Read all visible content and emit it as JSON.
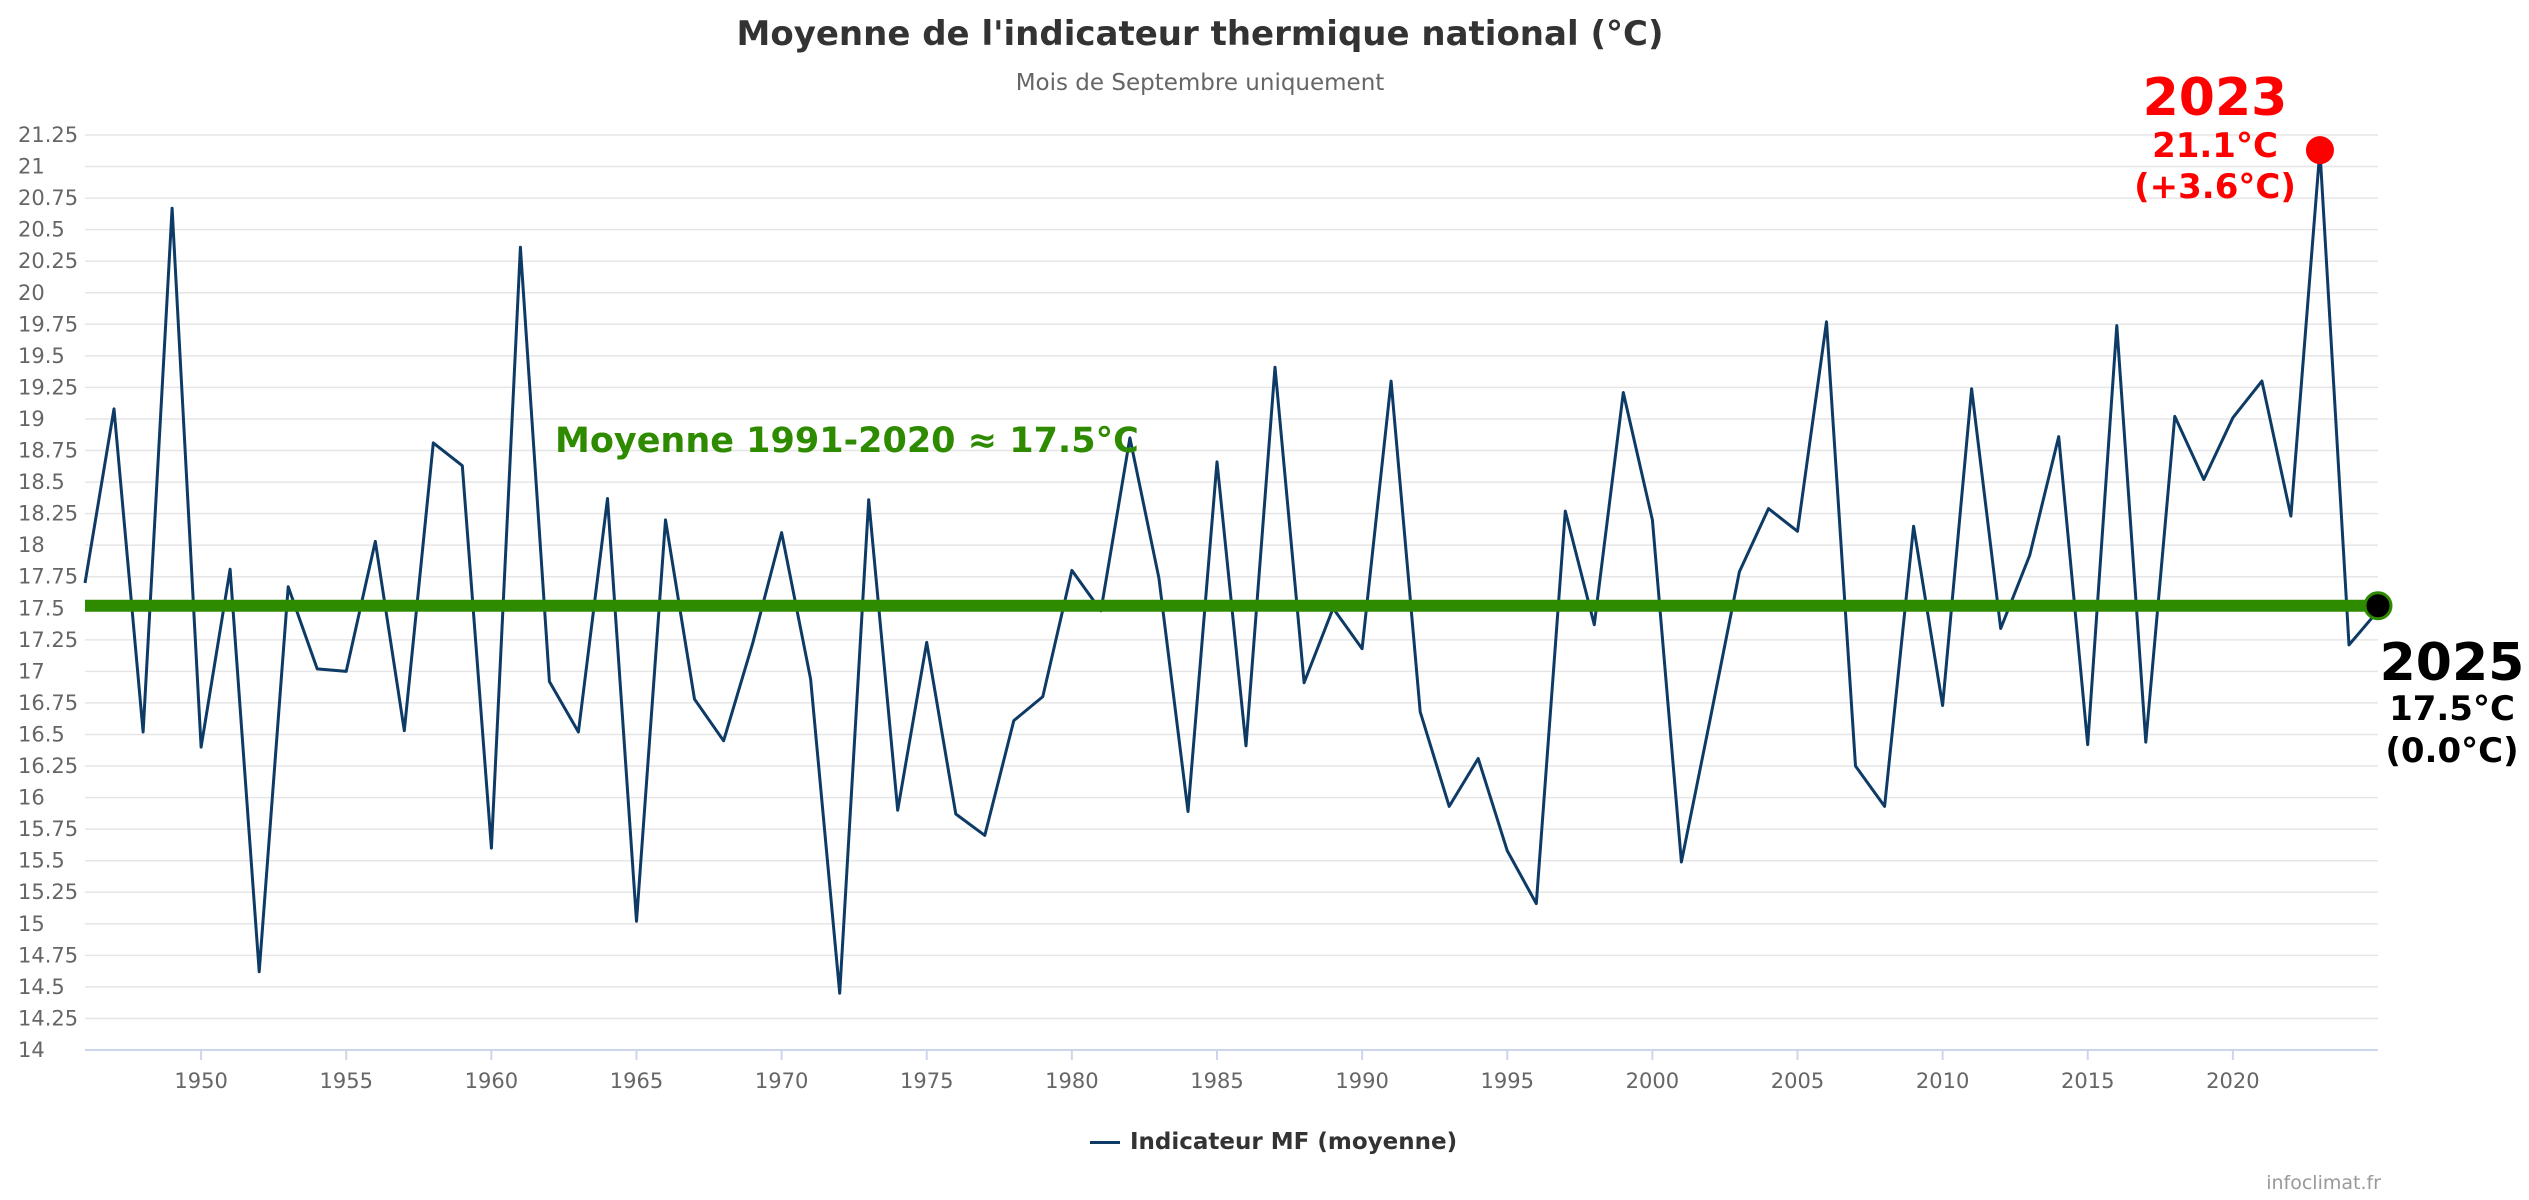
{
  "chart_data": {
    "type": "line",
    "title": "Moyenne de l'indicateur thermique national (°C)",
    "subtitle": "Mois de Septembre uniquement",
    "xlabel": "",
    "ylabel": "",
    "xlim": [
      1946,
      2025
    ],
    "ylim": [
      14,
      21.25
    ],
    "y_ticks": [
      "14",
      "14.25",
      "14.5",
      "14.75",
      "15",
      "15.25",
      "15.5",
      "15.75",
      "16",
      "16.25",
      "16.5",
      "16.75",
      "17",
      "17.25",
      "17.5",
      "17.75",
      "18",
      "18.25",
      "18.5",
      "18.75",
      "19",
      "19.25",
      "19.5",
      "19.75",
      "20",
      "20.25",
      "20.5",
      "20.75",
      "21",
      "21.25"
    ],
    "x_ticks": [
      "1950",
      "1955",
      "1960",
      "1965",
      "1970",
      "1975",
      "1980",
      "1985",
      "1990",
      "1995",
      "2000",
      "2005",
      "2010",
      "2015",
      "2020"
    ],
    "grid": true,
    "legend_position": "bottom-center",
    "series": [
      {
        "name": "Indicateur MF (moyenne)",
        "color": "#0d3b66",
        "x": [
          1946,
          1947,
          1948,
          1949,
          1950,
          1951,
          1952,
          1953,
          1954,
          1955,
          1956,
          1957,
          1958,
          1959,
          1960,
          1961,
          1962,
          1963,
          1964,
          1965,
          1966,
          1967,
          1968,
          1969,
          1970,
          1971,
          1972,
          1973,
          1974,
          1975,
          1976,
          1977,
          1978,
          1979,
          1980,
          1981,
          1982,
          1983,
          1984,
          1985,
          1986,
          1987,
          1988,
          1989,
          1990,
          1991,
          1992,
          1993,
          1994,
          1995,
          1996,
          1997,
          1998,
          1999,
          2000,
          2001,
          2002,
          2003,
          2004,
          2005,
          2006,
          2007,
          2008,
          2009,
          2010,
          2011,
          2012,
          2013,
          2014,
          2015,
          2016,
          2017,
          2018,
          2019,
          2020,
          2021,
          2022,
          2023,
          2024,
          2025
        ],
        "values": [
          17.7,
          19.08,
          16.52,
          20.67,
          16.4,
          17.81,
          14.62,
          17.67,
          17.02,
          17.0,
          18.03,
          16.53,
          18.81,
          18.63,
          15.6,
          20.36,
          16.92,
          16.52,
          18.37,
          15.02,
          18.2,
          16.78,
          16.45,
          17.22,
          18.1,
          16.94,
          14.45,
          18.36,
          15.9,
          17.23,
          15.87,
          15.7,
          16.61,
          16.8,
          17.8,
          17.48,
          18.85,
          17.74,
          15.89,
          18.66,
          16.41,
          19.41,
          16.91,
          17.5,
          17.18,
          19.3,
          16.68,
          15.93,
          16.31,
          15.58,
          15.16,
          18.27,
          17.37,
          19.21,
          18.2,
          15.49,
          16.63,
          17.79,
          18.29,
          18.11,
          19.77,
          16.25,
          15.93,
          18.15,
          16.73,
          19.24,
          17.34,
          17.92,
          18.86,
          16.42,
          19.74,
          16.44,
          19.02,
          18.52,
          19.01,
          19.3,
          18.23,
          21.13,
          17.21,
          17.48
        ]
      }
    ],
    "reference_line": {
      "label": "Moyenne 1991-2020  ≈ 17.5°C",
      "value": 17.52,
      "color": "#2e8b00"
    },
    "annotations": [
      {
        "year": "2023",
        "value_text": "21.1°C",
        "anomaly_text": "(+3.6°C)",
        "x": 2023,
        "y": 21.13,
        "color": "#ff0000"
      },
      {
        "year": "2025",
        "value_text": "17.5°C",
        "anomaly_text": "(0.0°C)",
        "x": 2025,
        "y": 17.52,
        "color": "#000000"
      }
    ]
  },
  "legend": {
    "label": "Indicateur MF (moyenne)"
  },
  "credits": "infoclimat.fr"
}
